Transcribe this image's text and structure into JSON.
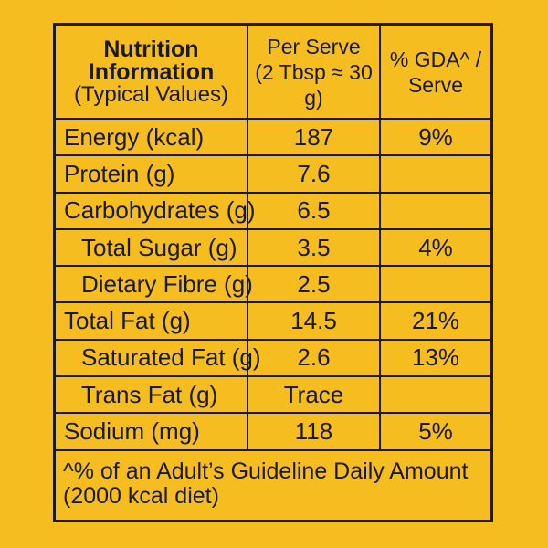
{
  "header": {
    "title_line1": "Nutrition",
    "title_line2": "Information",
    "title_line3": "(Typical Values)",
    "col2_line1": "Per Serve",
    "col2_line2": "(2 Tbsp ≈ 30 g)",
    "col3_line1": "% GDA^ /",
    "col3_line2": "Serve"
  },
  "rows": [
    {
      "label": "Energy (kcal)",
      "value": "187",
      "gda": "9%"
    },
    {
      "label": "Protein (g)",
      "value": "7.6",
      "gda": ""
    },
    {
      "label": "Carbohydrates (g)",
      "value": "6.5",
      "gda": ""
    },
    {
      "label": "Total Sugar (g)",
      "value": "3.5",
      "gda": "4%"
    },
    {
      "label": "Dietary Fibre (g)",
      "value": "2.5",
      "gda": ""
    },
    {
      "label": "Total Fat (g)",
      "value": "14.5",
      "gda": "21%"
    },
    {
      "label": "Saturated Fat (g)",
      "value": "2.6",
      "gda": "13%"
    },
    {
      "label": "Trans Fat (g)",
      "value": "Trace",
      "gda": ""
    },
    {
      "label": "Sodium (mg)",
      "value": "118",
      "gda": "5%"
    }
  ],
  "footnote": {
    "line1": "^% of an Adult’s Guideline Daily Amount",
    "line2": "(2000 kcal diet)"
  },
  "colors": {
    "background": "#f5bd1f",
    "ink": "#1a1a1a"
  }
}
